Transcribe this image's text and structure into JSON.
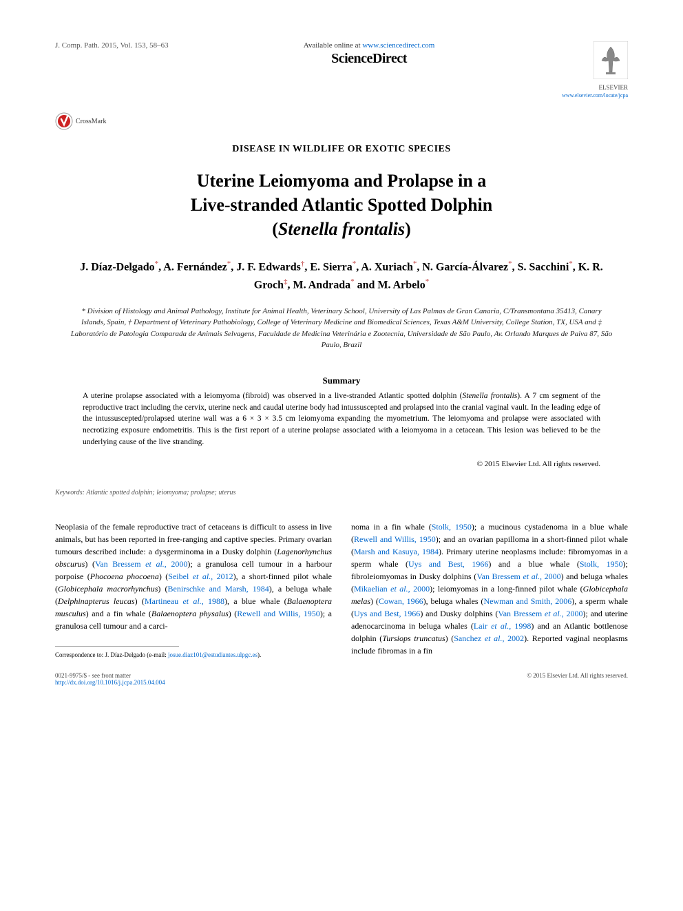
{
  "header": {
    "citation": "J. Comp. Path. 2015, Vol. 153, 58–63",
    "available_prefix": "Available online at ",
    "available_url": "www.sciencedirect.com",
    "brand": "ScienceDirect",
    "elsevier_name": "ELSEVIER",
    "elsevier_url": "www.elsevier.com/locate/jcpa",
    "crossmark": "CrossMark"
  },
  "section": "DISEASE IN WILDLIFE OR EXOTIC SPECIES",
  "title_line1": "Uterine Leiomyoma and Prolapse in a",
  "title_line2": "Live-stranded Atlantic Spotted Dolphin",
  "title_line3_open": "(",
  "title_line3_italic": "Stenella frontalis",
  "title_line3_close": ")",
  "authors_html": "J. Díaz-Delgado<sup>*</sup>, A. Fernández<sup>*</sup>, J. F. Edwards<sup class=\"dag\">†</sup>, E. Sierra<sup>*</sup>, A. Xuriach<sup>*</sup>, N. García-Álvarez<sup>*</sup>, S. Sacchini<sup>*</sup>, K. R. Groch<sup class=\"dag\">‡</sup>, M. Andrada<sup>*</sup> and M. Arbelo<sup>*</sup>",
  "affiliations": "* Division of Histology and Animal Pathology, Institute for Animal Health, Veterinary School, University of Las Palmas de Gran Canaria, C/Transmontana 35413, Canary Islands, Spain, † Department of Veterinary Pathobiology, College of Veterinary Medicine and Biomedical Sciences, Texas A&M University, College Station, TX, USA and ‡ Laboratório de Patologia Comparada de Animais Selvagens, Faculdade de Medicina Veterinária e Zootecnia, Universidade de São Paulo, Av. Orlando Marques de Paiva 87, São Paulo, Brazil",
  "summary": {
    "heading": "Summary",
    "text_parts": [
      "A uterine prolapse associated with a leiomyoma (fibroid) was observed in a live-stranded Atlantic spotted dolphin (",
      "Stenella frontalis",
      "). A 7 cm segment of the reproductive tract including the cervix, uterine neck and caudal uterine body had intussuscepted and prolapsed into the cranial vaginal vault. In the leading edge of the intussuscepted/prolapsed uterine wall was a 6 × 3 × 3.5 cm leiomyoma expanding the myometrium. The leiomyoma and prolapse were associated with necrotizing exposure endometritis. This is the first report of a uterine prolapse associated with a leiomyoma in a cetacean. This lesion was believed to be the underlying cause of the live stranding."
    ]
  },
  "copyright": "© 2015 Elsevier Ltd. All rights reserved.",
  "keywords": {
    "label": "Keywords:",
    "text": " Atlantic spotted dolphin; leiomyoma; prolapse; uterus"
  },
  "body": {
    "col1_html": "Neoplasia of the female reproductive tract of cetaceans is difficult to assess in live animals, but has been reported in free-ranging and captive species. Primary ovarian tumours described include: a dysgerminoma in a Dusky dolphin (<span class=\"italic\">Lagenorhynchus obscurus</span>) (<a href=\"#\">Van Bressem <span class=\"italic\">et al.</span>, 2000</a>); a granulosa cell tumour in a harbour porpoise (<span class=\"italic\">Phocoena phocoena</span>) (<a href=\"#\">Seibel <span class=\"italic\">et al.</span>, 2012</a>), a short-finned pilot whale (<span class=\"italic\">Globicephala macrorhynchus</span>) (<a href=\"#\">Benirschke and Marsh, 1984</a>), a beluga whale (<span class=\"italic\">Delphinapterus leucas</span>) (<a href=\"#\">Martineau <span class=\"italic\">et al.</span>, 1988</a>), a blue whale (<span class=\"italic\">Balaenoptera musculus</span>) and a fin whale (<span class=\"italic\">Balaenoptera physalus</span>) (<a href=\"#\">Rewell and Willis, 1950</a>); a granulosa cell tumour and a carci-",
    "col2_html": "noma in a fin whale (<a href=\"#\">Stolk, 1950</a>); a mucinous cystadenoma in a blue whale (<a href=\"#\">Rewell and Willis, 1950</a>); and an ovarian papilloma in a short-finned pilot whale (<a href=\"#\">Marsh and Kasuya, 1984</a>). Primary uterine neoplasms include: fibromyomas in a sperm whale (<a href=\"#\">Uys and Best, 1966</a>) and a blue whale (<a href=\"#\">Stolk, 1950</a>); fibroleiomyomas in Dusky dolphins (<a href=\"#\">Van Bressem <span class=\"italic\">et al.</span>, 2000</a>) and beluga whales (<a href=\"#\">Mikaelian <span class=\"italic\">et al.</span>, 2000</a>); leiomyomas in a long-finned pilot whale (<span class=\"italic\">Globicephala melas</span>) (<a href=\"#\">Cowan, 1966</a>), beluga whales (<a href=\"#\">Newman and Smith, 2006</a>), a sperm whale (<a href=\"#\">Uys and Best, 1966</a>) and Dusky dolphins (<a href=\"#\">Van Bressem <span class=\"italic\">et al.</span>, 2000</a>); and uterine adenocarcinoma in beluga whales (<a href=\"#\">Lair <span class=\"italic\">et al.</span>, 1998</a>) and an Atlantic bottlenose dolphin (<span class=\"italic\">Tursiops truncatus</span>) (<a href=\"#\">Sanchez <span class=\"italic\">et al.</span>, 2002</a>). Reported vaginal neoplasms include fibromas in a fin"
  },
  "correspondence": {
    "label": "Correspondence to: J. Díaz-Delgado (e-mail: ",
    "email": "josue.diaz101@estudiantes.ulpgc.es",
    "close": ")."
  },
  "footer": {
    "issn": "0021-9975/$ - see front matter",
    "doi": "http://dx.doi.org/10.1016/j.jcpa.2015.04.004",
    "copyright": "© 2015 Elsevier Ltd. All rights reserved."
  },
  "colors": {
    "link": "#0066cc",
    "sup": "#c04040",
    "elsevier_orange": "#ff8800",
    "crossmark_red": "#cc2222"
  }
}
